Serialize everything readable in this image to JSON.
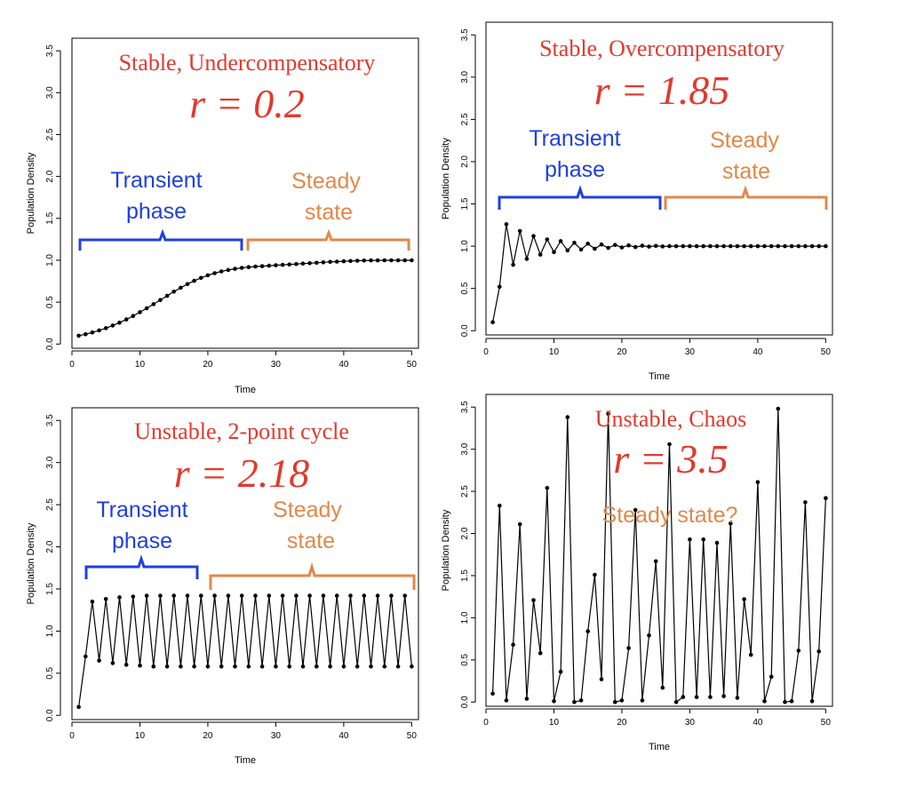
{
  "chart_data": [
    {
      "type": "line",
      "title": "Stable, Undercompensatory",
      "parameter_label": "r = 0.2",
      "xlabel": "Time",
      "ylabel": "Population Density",
      "xlim": [
        0,
        51
      ],
      "ylim": [
        -0.05,
        3.65
      ],
      "xticks": [
        "0",
        "10",
        "20",
        "30",
        "40",
        "50"
      ],
      "yticks": [
        "0.0",
        "0.5",
        "1.0",
        "1.5",
        "2.0",
        "2.5",
        "3.0",
        "3.5"
      ],
      "grid": false,
      "annotations": {
        "transient": [
          "Transient",
          "phase"
        ],
        "steady": [
          "Steady",
          "state"
        ]
      },
      "series": [
        {
          "x": [
            1,
            2,
            3,
            4,
            5,
            6,
            7,
            8,
            9,
            10,
            11,
            12,
            13,
            14,
            15,
            16,
            17,
            18,
            19,
            20,
            21,
            22,
            23,
            24,
            25,
            26,
            27,
            28,
            29,
            30,
            31,
            32,
            33,
            34,
            35,
            36,
            37,
            38,
            39,
            40,
            41,
            42,
            43,
            44,
            45,
            46,
            47,
            48,
            49,
            50
          ],
          "values": [
            0.1,
            0.118,
            0.139,
            0.163,
            0.19,
            0.221,
            0.255,
            0.293,
            0.335,
            0.38,
            0.427,
            0.476,
            0.526,
            0.576,
            0.625,
            0.672,
            0.715,
            0.755,
            0.79,
            0.82,
            0.846,
            0.867,
            0.884,
            0.898,
            0.909,
            0.918,
            0.925,
            0.93,
            0.935,
            0.94,
            0.945,
            0.95,
            0.955,
            0.96,
            0.965,
            0.97,
            0.975,
            0.98,
            0.984,
            0.988,
            0.991,
            0.994,
            0.996,
            0.998,
            0.999,
            1.0,
            1.0,
            1.0,
            1.0,
            1.0
          ]
        }
      ]
    },
    {
      "type": "line",
      "title": "Stable, Overcompensatory",
      "parameter_label": "r = 1.85",
      "xlabel": "Time",
      "ylabel": "Population Density",
      "xlim": [
        0,
        51
      ],
      "ylim": [
        -0.05,
        3.65
      ],
      "xticks": [
        "0",
        "10",
        "20",
        "30",
        "40",
        "50"
      ],
      "yticks": [
        "0.0",
        "0.5",
        "1.0",
        "1.5",
        "2.0",
        "2.5",
        "3.0",
        "3.5"
      ],
      "grid": false,
      "annotations": {
        "transient": [
          "Transient",
          "phase"
        ],
        "steady": [
          "Steady",
          "state"
        ]
      },
      "series": [
        {
          "x": [
            1,
            2,
            3,
            4,
            5,
            6,
            7,
            8,
            9,
            10,
            11,
            12,
            13,
            14,
            15,
            16,
            17,
            18,
            19,
            20,
            21,
            22,
            23,
            24,
            25,
            26,
            27,
            28,
            29,
            30,
            31,
            32,
            33,
            34,
            35,
            36,
            37,
            38,
            39,
            40,
            41,
            42,
            43,
            44,
            45,
            46,
            47,
            48,
            49,
            50
          ],
          "values": [
            0.1,
            0.52,
            1.26,
            0.78,
            1.18,
            0.85,
            1.12,
            0.9,
            1.08,
            0.93,
            1.06,
            0.95,
            1.04,
            0.96,
            1.03,
            0.97,
            1.02,
            0.98,
            1.015,
            0.985,
            1.01,
            0.99,
            1.005,
            0.995,
            1.003,
            0.997,
            1.0,
            1.0,
            1.0,
            1.0,
            1.0,
            1.0,
            1.0,
            1.0,
            1.0,
            1.0,
            1.0,
            1.0,
            1.0,
            1.0,
            1.0,
            1.0,
            1.0,
            1.0,
            1.0,
            1.0,
            1.0,
            1.0,
            1.0,
            1.0
          ]
        }
      ]
    },
    {
      "type": "line",
      "title": "Unstable, 2-point cycle",
      "parameter_label": "r = 2.18",
      "xlabel": "Time",
      "ylabel": "Population Density",
      "xlim": [
        0,
        51
      ],
      "ylim": [
        -0.05,
        3.65
      ],
      "xticks": [
        "0",
        "10",
        "20",
        "30",
        "40",
        "50"
      ],
      "yticks": [
        "0.0",
        "0.5",
        "1.0",
        "1.5",
        "2.0",
        "2.5",
        "3.0",
        "3.5"
      ],
      "grid": false,
      "annotations": {
        "transient": [
          "Transient",
          "phase"
        ],
        "steady": [
          "Steady",
          "state"
        ]
      },
      "series": [
        {
          "x": [
            1,
            2,
            3,
            4,
            5,
            6,
            7,
            8,
            9,
            10,
            11,
            12,
            13,
            14,
            15,
            16,
            17,
            18,
            19,
            20,
            21,
            22,
            23,
            24,
            25,
            26,
            27,
            28,
            29,
            30,
            31,
            32,
            33,
            34,
            35,
            36,
            37,
            38,
            39,
            40,
            41,
            42,
            43,
            44,
            45,
            46,
            47,
            48,
            49,
            50
          ],
          "values": [
            0.1,
            0.7,
            1.35,
            0.65,
            1.38,
            0.62,
            1.4,
            0.6,
            1.41,
            0.59,
            1.42,
            0.58,
            1.42,
            0.58,
            1.42,
            0.58,
            1.42,
            0.58,
            1.42,
            0.58,
            1.42,
            0.58,
            1.42,
            0.58,
            1.42,
            0.58,
            1.42,
            0.58,
            1.42,
            0.58,
            1.42,
            0.58,
            1.42,
            0.58,
            1.42,
            0.58,
            1.42,
            0.58,
            1.42,
            0.58,
            1.42,
            0.58,
            1.42,
            0.58,
            1.42,
            0.58,
            1.42,
            0.58,
            1.42,
            0.58
          ]
        }
      ]
    },
    {
      "type": "line",
      "title": "Unstable, Chaos",
      "parameter_label": "r = 3.5",
      "xlabel": "Time",
      "ylabel": "Population Density",
      "xlim": [
        0,
        51
      ],
      "ylim": [
        -0.05,
        3.65
      ],
      "xticks": [
        "0",
        "10",
        "20",
        "30",
        "40",
        "50"
      ],
      "yticks": [
        "0.0",
        "0.5",
        "1.0",
        "1.5",
        "2.0",
        "2.5",
        "3.0",
        "3.5"
      ],
      "grid": false,
      "annotations": {
        "question": "Steady state?"
      },
      "series": [
        {
          "x": [
            1,
            2,
            3,
            4,
            5,
            6,
            7,
            8,
            9,
            10,
            11,
            12,
            13,
            14,
            15,
            16,
            17,
            18,
            19,
            20,
            21,
            22,
            23,
            24,
            25,
            26,
            27,
            28,
            29,
            30,
            31,
            32,
            33,
            34,
            35,
            36,
            37,
            38,
            39,
            40,
            41,
            42,
            43,
            44,
            45,
            46,
            47,
            48,
            49,
            50
          ],
          "values": [
            0.1,
            2.33,
            0.02,
            0.68,
            2.11,
            0.04,
            1.21,
            0.58,
            2.54,
            0.01,
            0.36,
            3.38,
            0.0,
            0.02,
            0.84,
            1.51,
            0.27,
            3.42,
            0.0,
            0.02,
            0.64,
            2.28,
            0.02,
            0.79,
            1.67,
            0.17,
            3.06,
            0.0,
            0.06,
            1.93,
            0.06,
            1.93,
            0.06,
            1.89,
            0.07,
            2.12,
            0.05,
            1.22,
            0.56,
            2.61,
            0.01,
            0.3,
            3.48,
            0.0,
            0.01,
            0.61,
            2.37,
            0.01,
            0.6,
            2.42
          ]
        }
      ]
    }
  ]
}
